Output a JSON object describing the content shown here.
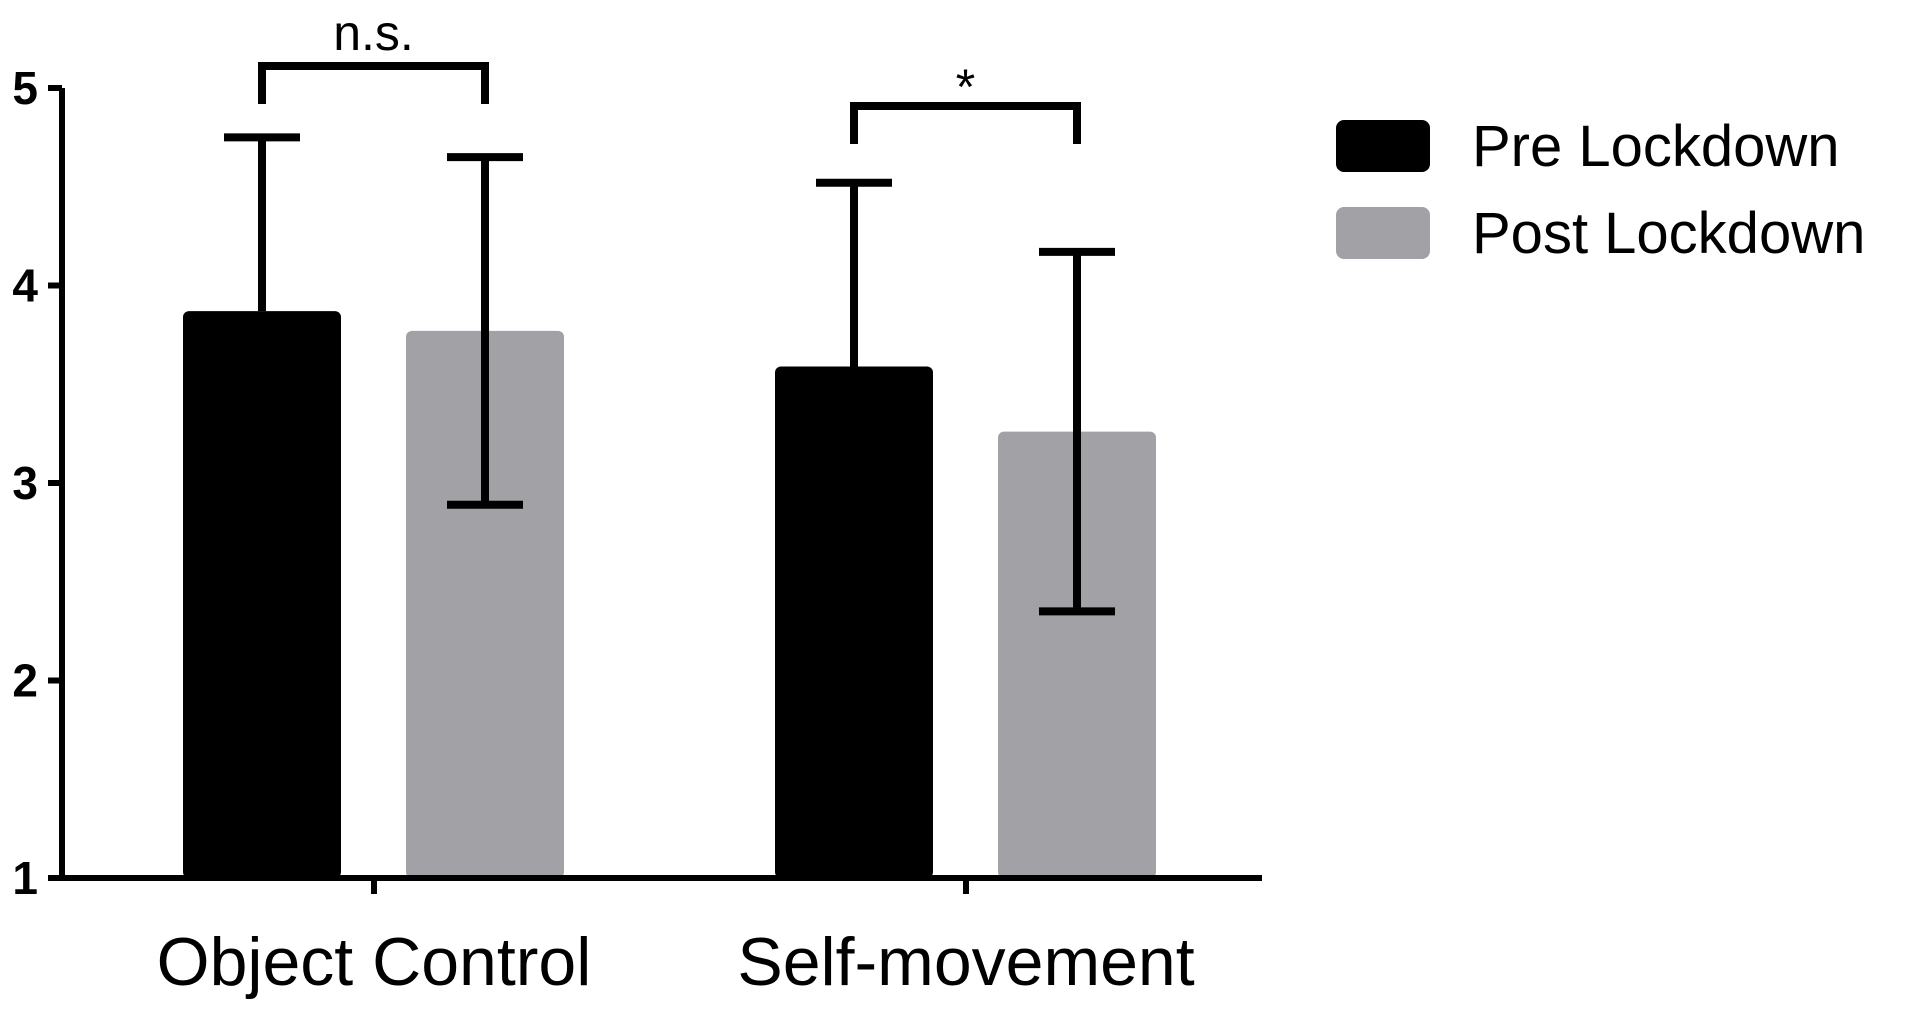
{
  "chart_data": {
    "type": "bar",
    "title": "",
    "xlabel": "",
    "ylabel": "",
    "ylim": [
      1,
      5
    ],
    "yticks": [
      "1",
      "2",
      "3",
      "4",
      "5"
    ],
    "categories": [
      "Object Control",
      "Self-movement"
    ],
    "series": [
      {
        "name": "Pre Lockdown",
        "color": "#000000",
        "values": [
          3.87,
          3.59
        ],
        "error": [
          0.88,
          0.93
        ]
      },
      {
        "name": "Post Lockdown",
        "color": "#a2a1a6",
        "values": [
          3.77,
          3.26
        ],
        "error": [
          0.88,
          0.91
        ]
      }
    ],
    "grid": false,
    "legend_position": "top-right",
    "significance": [
      {
        "category": "Object Control",
        "label": "n.s."
      },
      {
        "category": "Self-movement",
        "label": "*"
      }
    ]
  }
}
